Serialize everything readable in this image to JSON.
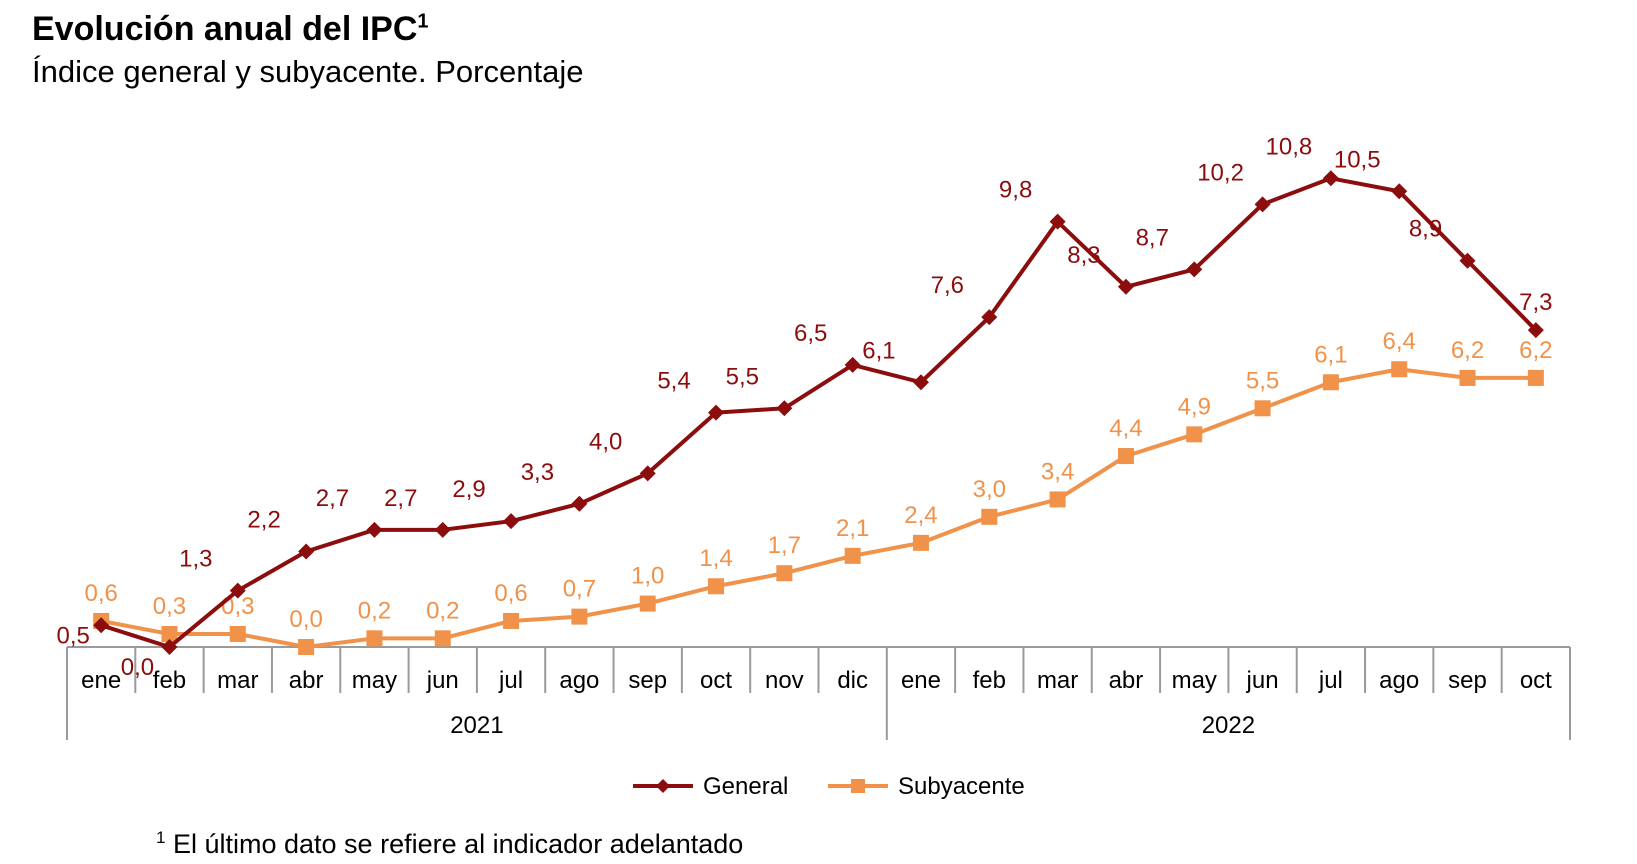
{
  "chart_data": {
    "type": "line",
    "title": "Evolución anual del IPC",
    "title_footnote_mark": "1",
    "subtitle": "Índice general y subyacente. Porcentaje",
    "categories": [
      "ene",
      "feb",
      "mar",
      "abr",
      "may",
      "jun",
      "jul",
      "ago",
      "sep",
      "oct",
      "nov",
      "dic",
      "ene",
      "feb",
      "mar",
      "abr",
      "may",
      "jun",
      "jul",
      "ago",
      "sep",
      "oct"
    ],
    "year_groups": [
      {
        "label": "2021",
        "months": 12
      },
      {
        "label": "2022",
        "months": 10
      }
    ],
    "series": [
      {
        "name": "General",
        "color": "#8B0D0D",
        "marker": "diamond",
        "values": [
          0.5,
          0.0,
          1.3,
          2.2,
          2.7,
          2.7,
          2.9,
          3.3,
          4.0,
          5.4,
          5.5,
          6.5,
          6.1,
          7.6,
          9.8,
          8.3,
          8.7,
          10.2,
          10.8,
          10.5,
          8.9,
          7.3
        ],
        "labels": [
          "0,5",
          "0,0",
          "1,3",
          "2,2",
          "2,7",
          "2,7",
          "2,9",
          "3,3",
          "4,0",
          "5,4",
          "5,5",
          "6,5",
          "6,1",
          "7,6",
          "9,8",
          "8,3",
          "8,7",
          "10,2",
          "10,8",
          "10,5",
          "8,9",
          "7,3"
        ]
      },
      {
        "name": "Subyacente",
        "color": "#F0924A",
        "marker": "square",
        "values": [
          0.6,
          0.3,
          0.3,
          0.0,
          0.2,
          0.2,
          0.6,
          0.7,
          1.0,
          1.4,
          1.7,
          2.1,
          2.4,
          3.0,
          3.4,
          4.4,
          4.9,
          5.5,
          6.1,
          6.4,
          6.2,
          6.2
        ],
        "labels": [
          "0,6",
          "0,3",
          "0,3",
          "0,0",
          "0,2",
          "0,2",
          "0,6",
          "0,7",
          "1,0",
          "1,4",
          "1,7",
          "2,1",
          "2,4",
          "3,0",
          "3,4",
          "4,4",
          "4,9",
          "5,5",
          "6,1",
          "6,4",
          "6,2",
          "6,2"
        ]
      }
    ],
    "ylim": [
      0,
      11
    ],
    "grid": false,
    "legend_position": "bottom",
    "axis_color": "#9A9A9A"
  },
  "footnote": {
    "mark": "1",
    "text": " El último dato se refiere al indicador adelantado"
  }
}
